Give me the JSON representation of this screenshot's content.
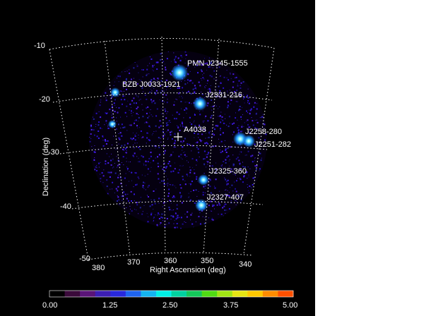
{
  "figure": {
    "xlabel": "Right Ascension (deg)",
    "ylabel": "Declination (deg)",
    "dec_ticks": [
      "-10",
      "-20",
      "-30",
      "-40",
      "-50"
    ],
    "ra_ticks": [
      "380",
      "370",
      "360",
      "350",
      "340"
    ],
    "sources": [
      {
        "name": "PMN J2345-1555"
      },
      {
        "name": "BZB J0033-1921"
      },
      {
        "name": "J2331-216"
      },
      {
        "name": "A4038"
      },
      {
        "name": "J2258-280"
      },
      {
        "name": "J2251-282"
      },
      {
        "name": "J2325-360"
      },
      {
        "name": "J2327-407"
      }
    ],
    "colorbar": {
      "ticks": [
        "0.00",
        "1.25",
        "2.50",
        "3.75",
        "5.00"
      ],
      "colors": [
        "#000000",
        "#3a0a3a",
        "#5a1478",
        "#3c1eb4",
        "#2828dc",
        "#1e64f0",
        "#14b4f0",
        "#00f0e6",
        "#00d2a0",
        "#14c85a",
        "#50dc14",
        "#a0e614",
        "#e6e614",
        "#ffc800",
        "#ff8c00",
        "#ff5000"
      ]
    }
  }
}
